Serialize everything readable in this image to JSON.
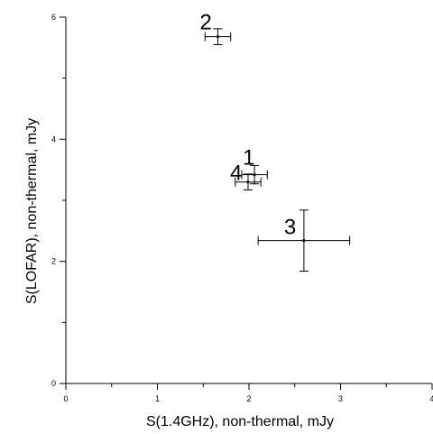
{
  "chart_data": {
    "type": "scatter",
    "xlabel": "S(1.4GHz), non-thermal, mJy",
    "ylabel": "S(LOFAR), non-thermal, mJy",
    "xlim": [
      0,
      4
    ],
    "ylim": [
      0,
      6
    ],
    "x_ticks": [
      "0",
      "1",
      "2",
      "3",
      "4"
    ],
    "y_ticks": [
      "0",
      "2",
      "4",
      "6"
    ],
    "grid": false,
    "points": [
      {
        "label": "2",
        "x": 1.66,
        "y": 5.68,
        "xerr": 0.14,
        "yerr": 0.13
      },
      {
        "label": "1",
        "x": 2.06,
        "y": 3.42,
        "xerr": 0.14,
        "yerr": 0.15
      },
      {
        "label": "4",
        "x": 1.99,
        "y": 3.3,
        "xerr": 0.14,
        "yerr": 0.13
      },
      {
        "label": "3",
        "x": 2.6,
        "y": 2.34,
        "xerr": 0.5,
        "yerr": 0.5
      }
    ]
  }
}
